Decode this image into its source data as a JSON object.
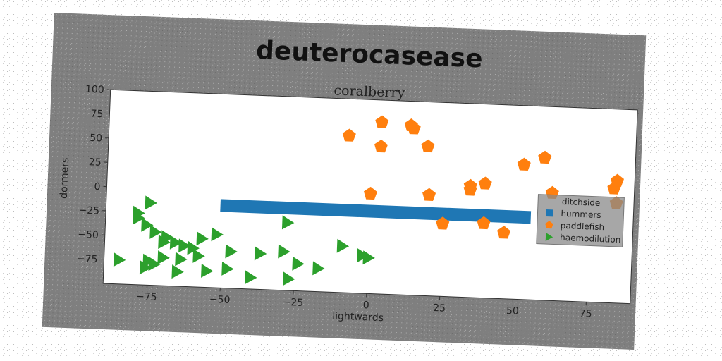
{
  "chart_data": {
    "type": "scatter",
    "title": "deuterocasease",
    "subtitle": "coralberry",
    "xlabel": "lightwards",
    "ylabel": "dormers",
    "xlim": [
      -90,
      90
    ],
    "ylim": [
      -100,
      100
    ],
    "x_ticks": [
      "−75",
      "−50",
      "−25",
      "0",
      "25",
      "50",
      "75"
    ],
    "x_tick_values": [
      -75,
      -50,
      -25,
      0,
      25,
      50,
      75
    ],
    "y_ticks": [
      "100",
      "75",
      "50",
      "25",
      "0",
      "−25",
      "−50",
      "−75"
    ],
    "y_tick_values": [
      100,
      75,
      50,
      25,
      0,
      -25,
      -50,
      -75
    ],
    "grid": false,
    "legend_position": "right",
    "legend_title": "ditchside",
    "series": [
      {
        "name": "hummers",
        "kind": "bar",
        "marker": "square",
        "color": "#1f77b4",
        "x_start": -51,
        "x_end": 55,
        "y": -15
      },
      {
        "name": "paddlefish",
        "kind": "scatter",
        "marker": "pentagon",
        "color": "#ff7f0e",
        "points": [
          [
            -8,
            62
          ],
          [
            3,
            77
          ],
          [
            3,
            52
          ],
          [
            13,
            75
          ],
          [
            14,
            72
          ],
          [
            19,
            54
          ],
          [
            0,
            3
          ],
          [
            20,
            4
          ],
          [
            25,
            -25
          ],
          [
            34,
            15
          ],
          [
            34,
            11
          ],
          [
            39,
            18
          ],
          [
            39,
            -23
          ],
          [
            46,
            -32
          ],
          [
            52,
            39
          ],
          [
            59,
            47
          ],
          [
            62,
            11
          ],
          [
            83,
            18
          ],
          [
            84,
            26
          ],
          [
            84,
            3
          ]
        ]
      },
      {
        "name": "haemodilution",
        "kind": "scatter",
        "marker": "triangle-right",
        "color": "#2ca02c",
        "points": [
          [
            -75,
            -15
          ],
          [
            -79,
            -26
          ],
          [
            -79,
            -31
          ],
          [
            -76,
            -38
          ],
          [
            -73,
            -45
          ],
          [
            -69,
            -50
          ],
          [
            -66,
            -55
          ],
          [
            -63,
            -58
          ],
          [
            -60,
            -60
          ],
          [
            -57,
            -50
          ],
          [
            -52,
            -45
          ],
          [
            -47,
            -62
          ],
          [
            -37,
            -63
          ],
          [
            -29,
            -60
          ],
          [
            -28,
            -30
          ],
          [
            -24,
            -72
          ],
          [
            -17,
            -76
          ],
          [
            -9,
            -52
          ],
          [
            -2,
            -61
          ],
          [
            0,
            -63
          ],
          [
            -85,
            -75
          ],
          [
            -75,
            -75
          ],
          [
            -73,
            -78
          ],
          [
            -70,
            -71
          ],
          [
            -64,
            -72
          ],
          [
            -58,
            -68
          ],
          [
            -65,
            -85
          ],
          [
            -55,
            -83
          ],
          [
            -48,
            -80
          ],
          [
            -40,
            -88
          ],
          [
            -27,
            -88
          ],
          [
            -76,
            -82
          ],
          [
            -70,
            -55
          ]
        ]
      }
    ]
  }
}
